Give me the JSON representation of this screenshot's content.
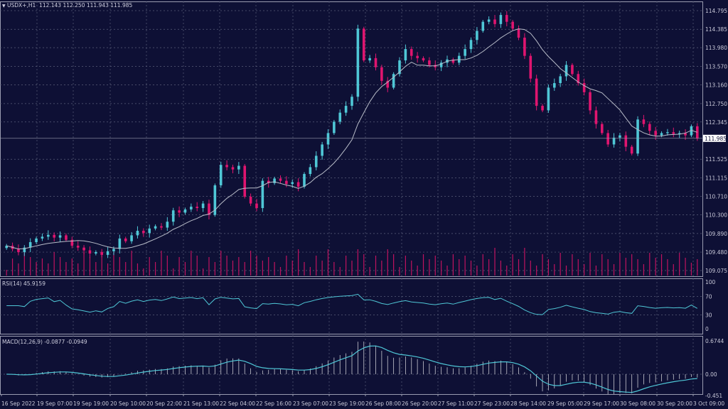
{
  "header": {
    "symbol": "USDX+,H1",
    "ohlc": "112.143 112.250 111.943 111.985"
  },
  "rsi_label": "RSI(14) 45.9159",
  "macd_label": "MACD(12,26,9) -0.0877 -0.0949",
  "colors": {
    "background": "#0e1035",
    "bull": "#4fc7d6",
    "bear": "#e0156f",
    "ma": "#b8bcc8",
    "rsi": "#4fc7d6",
    "macd_signal": "#4fc7d6",
    "macd_hist": "#c8c8d0",
    "grid": "#5a5e7a",
    "volume": "#c0135f"
  },
  "chart_data": {
    "type": "candlestick",
    "price_axis": {
      "ticks": [
        "114.795",
        "114.385",
        "113.980",
        "113.570",
        "113.160",
        "112.750",
        "112.345",
        "111.525",
        "111.115",
        "110.710",
        "110.300",
        "109.890",
        "109.480",
        "109.075"
      ],
      "range": [
        109.075,
        114.795
      ],
      "current": "111.985"
    },
    "rsi_axis": {
      "ticks": [
        "100",
        "70",
        "30",
        "0"
      ],
      "range": [
        0,
        100
      ]
    },
    "macd_axis": {
      "ticks": [
        "0.6744",
        "0.00",
        "-0.451"
      ],
      "range": [
        -0.451,
        0.6744
      ]
    },
    "time_ticks": [
      "16 Sep 2022",
      "19 Sep 07:00",
      "19 Sep 19:00",
      "20 Sep 10:00",
      "20 Sep 22:00",
      "21 Sep 13:00",
      "22 Sep 04:00",
      "22 Sep 16:00",
      "23 Sep 07:00",
      "23 Sep 19:00",
      "26 Sep 08:00",
      "26 Sep 20:00",
      "27 Sep 11:00",
      "27 Sep 23:00",
      "28 Sep 14:00",
      "29 Sep 05:00",
      "29 Sep 17:00",
      "30 Sep 08:00",
      "30 Sep 20:00",
      "3 Oct 09:00"
    ],
    "closes": [
      109.62,
      109.55,
      109.48,
      109.58,
      109.7,
      109.78,
      109.82,
      109.86,
      109.8,
      109.85,
      109.75,
      109.62,
      109.58,
      109.52,
      109.45,
      109.48,
      109.42,
      109.5,
      109.55,
      109.78,
      109.72,
      109.85,
      109.95,
      109.9,
      110.0,
      110.05,
      110.02,
      110.15,
      110.4,
      110.35,
      110.42,
      110.48,
      110.45,
      110.55,
      110.3,
      110.95,
      111.4,
      111.35,
      111.3,
      111.38,
      110.7,
      110.55,
      110.45,
      111.05,
      111.0,
      111.1,
      111.05,
      110.98,
      111.02,
      110.92,
      111.2,
      111.35,
      111.6,
      111.85,
      112.1,
      112.35,
      112.55,
      112.7,
      112.9,
      114.4,
      113.7,
      113.75,
      113.55,
      113.25,
      113.1,
      113.4,
      113.7,
      113.95,
      113.8,
      113.75,
      113.7,
      113.6,
      113.55,
      113.65,
      113.72,
      113.65,
      113.8,
      113.95,
      114.15,
      114.35,
      114.55,
      114.6,
      114.5,
      114.7,
      114.55,
      114.4,
      114.2,
      113.8,
      113.3,
      112.7,
      112.6,
      113.1,
      113.2,
      113.35,
      113.6,
      113.4,
      113.2,
      113.0,
      112.6,
      112.3,
      112.1,
      111.85,
      112.0,
      112.05,
      111.8,
      111.65,
      112.4,
      112.3,
      112.15,
      112.05,
      112.1,
      112.12,
      112.08,
      112.1,
      112.05,
      112.25,
      111.985
    ]
  }
}
